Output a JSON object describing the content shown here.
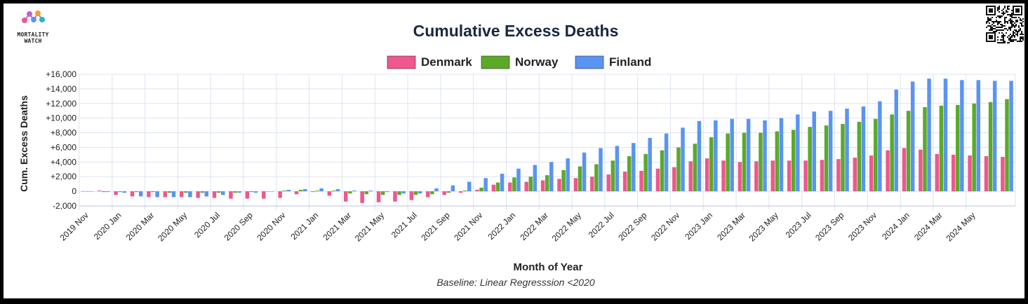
{
  "brand": {
    "name": "MORTALITY\nWATCH"
  },
  "chart_data": {
    "type": "bar",
    "title": "Cumulative Excess Deaths",
    "subtitle": "Baseline: Linear Regresssion <2020",
    "xlabel": "Month of Year",
    "ylabel": "Cum. Excess Deaths",
    "ylim": [
      -2000,
      16000
    ],
    "yticks": [
      -2000,
      0,
      2000,
      4000,
      6000,
      8000,
      10000,
      12000,
      14000,
      16000
    ],
    "ytick_labels": [
      "-2,000",
      "0",
      "+2,000",
      "+4,000",
      "+6,000",
      "+8,000",
      "+10,000",
      "+12,000",
      "+14,000",
      "+16,000"
    ],
    "grid": true,
    "legend_position": "top",
    "categories": [
      "2019 Nov",
      "2019 Dec",
      "2020 Jan",
      "2020 Feb",
      "2020 Mar",
      "2020 Apr",
      "2020 May",
      "2020 Jun",
      "2020 Jul",
      "2020 Aug",
      "2020 Sep",
      "2020 Oct",
      "2020 Nov",
      "2020 Dec",
      "2021 Jan",
      "2021 Feb",
      "2021 Mar",
      "2021 Apr",
      "2021 May",
      "2021 Jun",
      "2021 Jul",
      "2021 Aug",
      "2021 Sep",
      "2021 Oct",
      "2021 Nov",
      "2021 Dec",
      "2022 Jan",
      "2022 Feb",
      "2022 Mar",
      "2022 Apr",
      "2022 May",
      "2022 Jun",
      "2022 Jul",
      "2022 Aug",
      "2022 Sep",
      "2022 Oct",
      "2022 Nov",
      "2022 Dec",
      "2023 Jan",
      "2023 Feb",
      "2023 Mar",
      "2023 Apr",
      "2023 May",
      "2023 Jun",
      "2023 Jul",
      "2023 Aug",
      "2023 Sep",
      "2023 Oct",
      "2023 Nov",
      "2023 Dec",
      "2024 Jan",
      "2024 Feb",
      "2024 Mar",
      "2024 Apr",
      "2024 May",
      "2024 Jun",
      "2024 Jul"
    ],
    "xtick_labels": [
      "2019 Nov",
      "2020 Jan",
      "2020 Mar",
      "2020 May",
      "2020 Jul",
      "2020 Sep",
      "2020 Nov",
      "2021 Jan",
      "2021 Mar",
      "2021 May",
      "2021 Jul",
      "2021 Sep",
      "2021 Nov",
      "2022 Jan",
      "2022 Mar",
      "2022 May",
      "2022 Jul",
      "2022 Sep",
      "2022 Nov",
      "2023 Jan",
      "2023 Mar",
      "2023 May",
      "2023 Jul",
      "2023 Sep",
      "2023 Nov",
      "2024 Jan",
      "2024 Mar",
      "2024 May"
    ],
    "series": [
      {
        "name": "Denmark",
        "color": "#f0568f",
        "values": [
          -50,
          100,
          -500,
          -700,
          -800,
          -800,
          -800,
          -900,
          -900,
          -1000,
          -1000,
          -1000,
          -900,
          -400,
          -100,
          -600,
          -1400,
          -1600,
          -1500,
          -1400,
          -1200,
          -800,
          -500,
          -200,
          200,
          900,
          1200,
          1300,
          1500,
          1700,
          1800,
          2000,
          2300,
          2700,
          2800,
          3100,
          3300,
          4100,
          4500,
          4200,
          4000,
          4100,
          4200,
          4200,
          4200,
          4300,
          4400,
          4600,
          4900,
          5600,
          5900,
          5700,
          5100,
          5000,
          4900,
          4800,
          4700
        ]
      },
      {
        "name": "Norway",
        "color": "#5aaa28",
        "values": [
          -20,
          -100,
          -100,
          -100,
          -100,
          -200,
          -200,
          -200,
          -200,
          -200,
          -100,
          -50,
          100,
          200,
          100,
          100,
          -300,
          -400,
          -500,
          -500,
          -500,
          -400,
          -200,
          100,
          500,
          1200,
          1900,
          2000,
          2200,
          2900,
          3400,
          3700,
          4200,
          4800,
          5100,
          5600,
          6000,
          6500,
          7400,
          7900,
          8000,
          8000,
          8200,
          8400,
          8800,
          9000,
          9200,
          9500,
          9900,
          10500,
          11000,
          11500,
          11700,
          11800,
          12000,
          12200,
          12600
        ]
      },
      {
        "name": "Finland",
        "color": "#5a94f2",
        "values": [
          -50,
          -100,
          -200,
          -700,
          -800,
          -800,
          -800,
          -700,
          -500,
          -200,
          -200,
          -50,
          200,
          300,
          400,
          300,
          100,
          100,
          -100,
          -300,
          -300,
          400,
          800,
          1300,
          1800,
          2400,
          3100,
          3600,
          4000,
          4500,
          5300,
          5900,
          6200,
          6600,
          7300,
          7900,
          8700,
          9600,
          9700,
          9900,
          9900,
          9700,
          10000,
          10500,
          10900,
          11000,
          11300,
          11600,
          12300,
          13900,
          15000,
          15400,
          15400,
          15200,
          15200,
          15100,
          15100
        ]
      }
    ]
  }
}
